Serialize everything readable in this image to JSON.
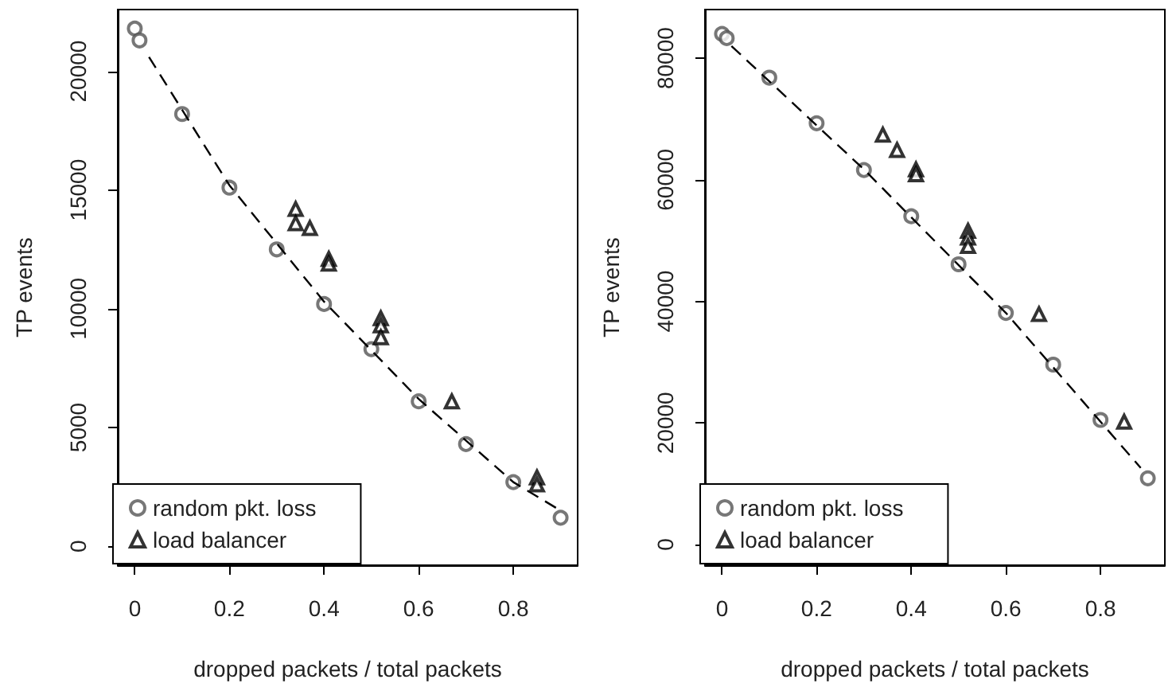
{
  "chart_data": [
    {
      "type": "scatter",
      "xlabel": "dropped packets / total packets",
      "ylabel": "TP events",
      "xlim": [
        -0.036,
        0.936
      ],
      "ylim": [
        -800,
        22600
      ],
      "xticks": [
        0,
        0.2,
        0.4,
        0.6,
        0.8
      ],
      "yticks": [
        0,
        5000,
        10000,
        15000,
        20000
      ],
      "grid": false,
      "legend": "bottom left",
      "series": [
        {
          "name": "random pkt. loss",
          "color": "#555555",
          "marker": "circle",
          "x": [
            0,
            0.01,
            0.1,
            0.2,
            0.3,
            0.4,
            0.5,
            0.6,
            0.7,
            0.8,
            0.9
          ],
          "values": [
            21800,
            21300,
            18200,
            15100,
            12500,
            10200,
            8300,
            6100,
            4300,
            2700,
            1200
          ]
        },
        {
          "name": "load balancer",
          "color": "#000000",
          "marker": "triangle",
          "x": [
            0.34,
            0.34,
            0.37,
            0.41,
            0.41,
            0.52,
            0.52,
            0.52,
            0.67,
            0.85,
            0.85
          ],
          "values": [
            14200,
            13600,
            13400,
            12100,
            11900,
            9600,
            9300,
            8800,
            6100,
            2900,
            2600
          ]
        },
        {
          "type": "line",
          "color": "#000000",
          "marker": "none",
          "line_style": "dashed",
          "x": [
            0.03,
            0.2,
            0.4,
            0.6,
            0.8,
            0.9
          ],
          "values": [
            20600,
            15200,
            10300,
            6200,
            2700,
            1500
          ]
        }
      ]
    },
    {
      "type": "scatter",
      "xlabel": "dropped packets / total packets",
      "ylabel": "TP events",
      "xlim": [
        -0.036,
        0.936
      ],
      "ylim": [
        -3400,
        88000
      ],
      "xticks": [
        0,
        0.2,
        0.4,
        0.6,
        0.8
      ],
      "yticks": [
        0,
        20000,
        40000,
        60000,
        80000
      ],
      "grid": false,
      "legend": "bottom left",
      "series": [
        {
          "name": "random pkt. loss",
          "color": "#555555",
          "marker": "circle",
          "x": [
            0,
            0.01,
            0.1,
            0.2,
            0.3,
            0.4,
            0.5,
            0.6,
            0.7,
            0.8,
            0.9
          ],
          "values": [
            84000,
            83300,
            76800,
            69300,
            61600,
            54000,
            46100,
            38100,
            29600,
            20500,
            10900
          ]
        },
        {
          "name": "load balancer",
          "color": "#000000",
          "marker": "triangle",
          "x": [
            0.34,
            0.37,
            0.41,
            0.41,
            0.52,
            0.52,
            0.52,
            0.67,
            0.85
          ],
          "values": [
            67400,
            64900,
            61700,
            60900,
            51600,
            50500,
            49100,
            37900,
            20200
          ]
        },
        {
          "type": "line",
          "color": "#000000",
          "marker": "none",
          "line_style": "dashed",
          "x": [
            0.02,
            0.3,
            0.6,
            0.885
          ],
          "values": [
            82000,
            61700,
            38100,
            12600
          ]
        }
      ]
    }
  ]
}
